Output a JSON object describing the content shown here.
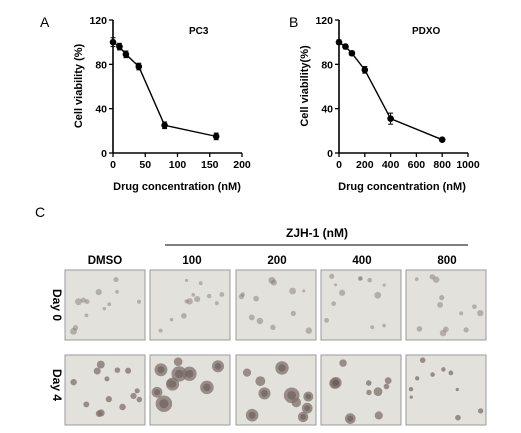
{
  "panel_labels": {
    "a": "A",
    "b": "B",
    "c": "C"
  },
  "chart_data": [
    {
      "type": "line",
      "title": "PC3",
      "xlabel": "Drug concentration (nM)",
      "ylabel": "Cell viability (%)",
      "xlim": [
        0,
        200
      ],
      "ylim": [
        0,
        120
      ],
      "xticks": [
        "0",
        "50",
        "100",
        "150",
        "200"
      ],
      "yticks": [
        "0",
        "40",
        "80",
        "120"
      ],
      "series": [
        {
          "x": [
            0,
            10,
            20,
            40,
            80,
            160
          ],
          "y": [
            100,
            96,
            89,
            78,
            25,
            15
          ],
          "err": [
            4,
            3,
            3,
            3,
            3,
            3
          ]
        }
      ]
    },
    {
      "type": "line",
      "title": "PDXO",
      "xlabel": "Drug concentration (nM)",
      "ylabel": "Cell viability(%)",
      "xlim": [
        0,
        1000
      ],
      "ylim": [
        0,
        120
      ],
      "xticks": [
        "0",
        "200",
        "400",
        "600",
        "800",
        "1000"
      ],
      "yticks": [
        "0",
        "40",
        "80",
        "120"
      ],
      "series": [
        {
          "x": [
            0,
            50,
            100,
            200,
            400,
            800
          ],
          "y": [
            100,
            96,
            90,
            75,
            31,
            12
          ],
          "err": [
            2,
            2,
            2,
            3,
            5,
            1
          ]
        }
      ]
    }
  ],
  "panel_c": {
    "group_label": "ZJH-1 (nM)",
    "columns": [
      "DMSO",
      "100",
      "200",
      "400",
      "800"
    ],
    "rows": [
      "Day 0",
      "Day 4"
    ]
  },
  "colors": {
    "line": "#000000",
    "image_bg": "#e2e1dc",
    "spheroid": "#7d6f6a"
  }
}
